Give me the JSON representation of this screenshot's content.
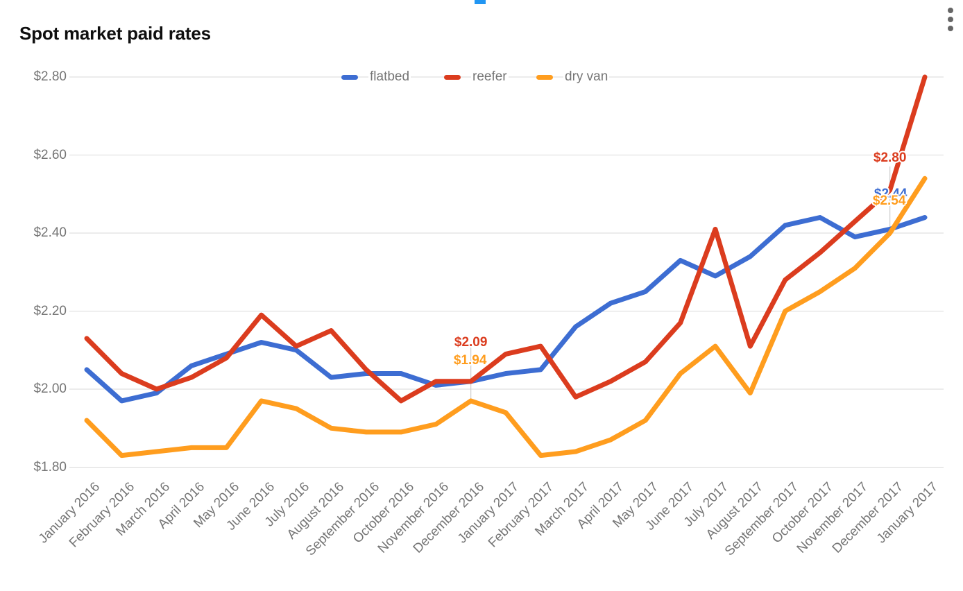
{
  "title": "Spot market paid rates",
  "icons": {
    "more_options": "kebab-menu"
  },
  "colors": {
    "flatbed": "#3D6DD2",
    "reefer": "#DB3C1E",
    "dry_van": "#FF9D1E",
    "axis_text": "#757575",
    "gridline": "#D9D9D9",
    "selection_fragment": "#2196F3"
  },
  "legend": {
    "items": [
      {
        "label": "flatbed",
        "color": "#3D6DD2"
      },
      {
        "label": "reefer",
        "color": "#DB3C1E"
      },
      {
        "label": "dry van",
        "color": "#FF9D1E"
      }
    ]
  },
  "chart_data": {
    "type": "line",
    "title": "Spot market paid rates",
    "legend_position": "top",
    "grid": true,
    "ylim": [
      1.8,
      2.8
    ],
    "y_ticks": [
      "$2.80",
      "$2.60",
      "$2.40",
      "$2.20",
      "$2.00",
      "$1.80"
    ],
    "y_tick_values": [
      2.8,
      2.6,
      2.4,
      2.2,
      2.0,
      1.8
    ],
    "x_labels": [
      "January 2016",
      "February 2016",
      "March 2016",
      "April 2016",
      "May 2016",
      "June 2016",
      "July 2016",
      "August 2016",
      "September 2016",
      "October 2016",
      "November 2016",
      "December 2016",
      "January 2017",
      "February 2017",
      "March 2017",
      "April 2017",
      "May 2017",
      "June 2017",
      "July 2017",
      "August 2017",
      "September 2017",
      "October 2017",
      "November 2017",
      "December 2017",
      "January 2017"
    ],
    "series": [
      {
        "name": "flatbed",
        "color": "#3D6DD2",
        "values": [
          2.05,
          1.97,
          1.99,
          2.06,
          2.09,
          2.12,
          2.1,
          2.03,
          2.04,
          2.04,
          2.01,
          2.02,
          2.04,
          2.05,
          2.16,
          2.22,
          2.25,
          2.33,
          2.29,
          2.34,
          2.42,
          2.44,
          2.39,
          2.41,
          2.44
        ]
      },
      {
        "name": "reefer",
        "color": "#DB3C1E",
        "values": [
          2.13,
          2.04,
          2.0,
          2.03,
          2.08,
          2.19,
          2.11,
          2.15,
          2.05,
          1.97,
          2.02,
          2.02,
          2.09,
          2.11,
          1.98,
          2.02,
          2.07,
          2.17,
          2.41,
          2.11,
          2.28,
          2.35,
          2.43,
          2.51,
          2.8
        ]
      },
      {
        "name": "dry van",
        "color": "#FF9D1E",
        "values": [
          1.92,
          1.83,
          1.84,
          1.85,
          1.85,
          1.97,
          1.95,
          1.9,
          1.89,
          1.89,
          1.91,
          1.97,
          1.94,
          1.83,
          1.84,
          1.87,
          1.92,
          2.04,
          2.11,
          1.99,
          2.2,
          2.25,
          2.31,
          2.4,
          2.54
        ]
      }
    ],
    "annotations": [
      {
        "text": "$2.09",
        "series": "reefer",
        "point_index": 12
      },
      {
        "text": "$1.94",
        "series": "dry van",
        "point_index": 12
      },
      {
        "text": "$2.80",
        "series": "reefer",
        "point_index": 24
      },
      {
        "text": "$2.44",
        "series": "flatbed",
        "point_index": 24
      },
      {
        "text": "$2.54",
        "series": "dry van",
        "point_index": 24
      }
    ]
  }
}
